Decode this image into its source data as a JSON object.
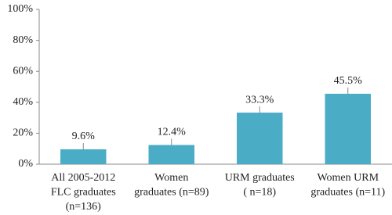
{
  "chart_data": {
    "type": "bar",
    "categories": [
      [
        "All 2005-2012",
        "FLC graduates",
        "(n=136)"
      ],
      [
        "Women",
        "graduates (n=89)"
      ],
      [
        "URM graduates",
        "( n=18)"
      ],
      [
        "Women URM",
        "graduates (n=11)"
      ]
    ],
    "values": [
      9.6,
      12.4,
      33.3,
      45.5
    ],
    "value_labels": [
      "9.6%",
      "12.4%",
      "33.3%",
      "45.5%"
    ],
    "color": "#4bacc6",
    "ylim": [
      0,
      100
    ],
    "yticks": [
      {
        "value": 0,
        "label": "0%"
      },
      {
        "value": 20,
        "label": "20%"
      },
      {
        "value": 40,
        "label": "40%"
      },
      {
        "value": 60,
        "label": "60%"
      },
      {
        "value": 80,
        "label": "80%"
      },
      {
        "value": 100,
        "label": "100%"
      }
    ],
    "grid": false
  }
}
